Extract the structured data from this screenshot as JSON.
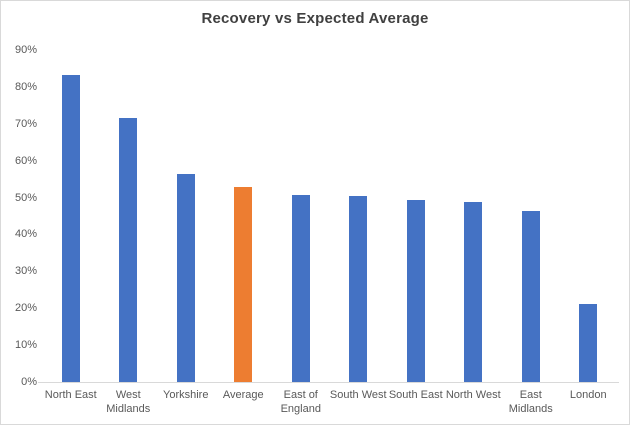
{
  "chart_data": {
    "type": "bar",
    "title": "Recovery vs Expected Average",
    "categories": [
      "North East",
      "West Midlands",
      "Yorkshire",
      "Average",
      "East of England",
      "South West",
      "South East",
      "North West",
      "East Midlands",
      "London"
    ],
    "values": [
      83.1,
      71.5,
      56.5,
      52.9,
      50.8,
      50.5,
      49.3,
      48.7,
      46.4,
      21.2
    ],
    "unit": "%",
    "highlight_category": "Average",
    "ylim": [
      0,
      90
    ],
    "yticks": [
      0,
      10,
      20,
      30,
      40,
      50,
      60,
      70,
      80,
      90
    ],
    "ytick_labels": [
      "0%",
      "10%",
      "20%",
      "30%",
      "40%",
      "50%",
      "60%",
      "70%",
      "80%",
      "90%"
    ],
    "xlabel": "",
    "ylabel": "",
    "grid": false,
    "legend": false,
    "colors": {
      "bar": "#4472C4",
      "highlight": "#ED7D31",
      "axis_line": "#D9D9D9",
      "tick_text": "#595959",
      "title_text": "#404040",
      "border": "#D9D9D9",
      "background": "#FFFFFF"
    }
  }
}
